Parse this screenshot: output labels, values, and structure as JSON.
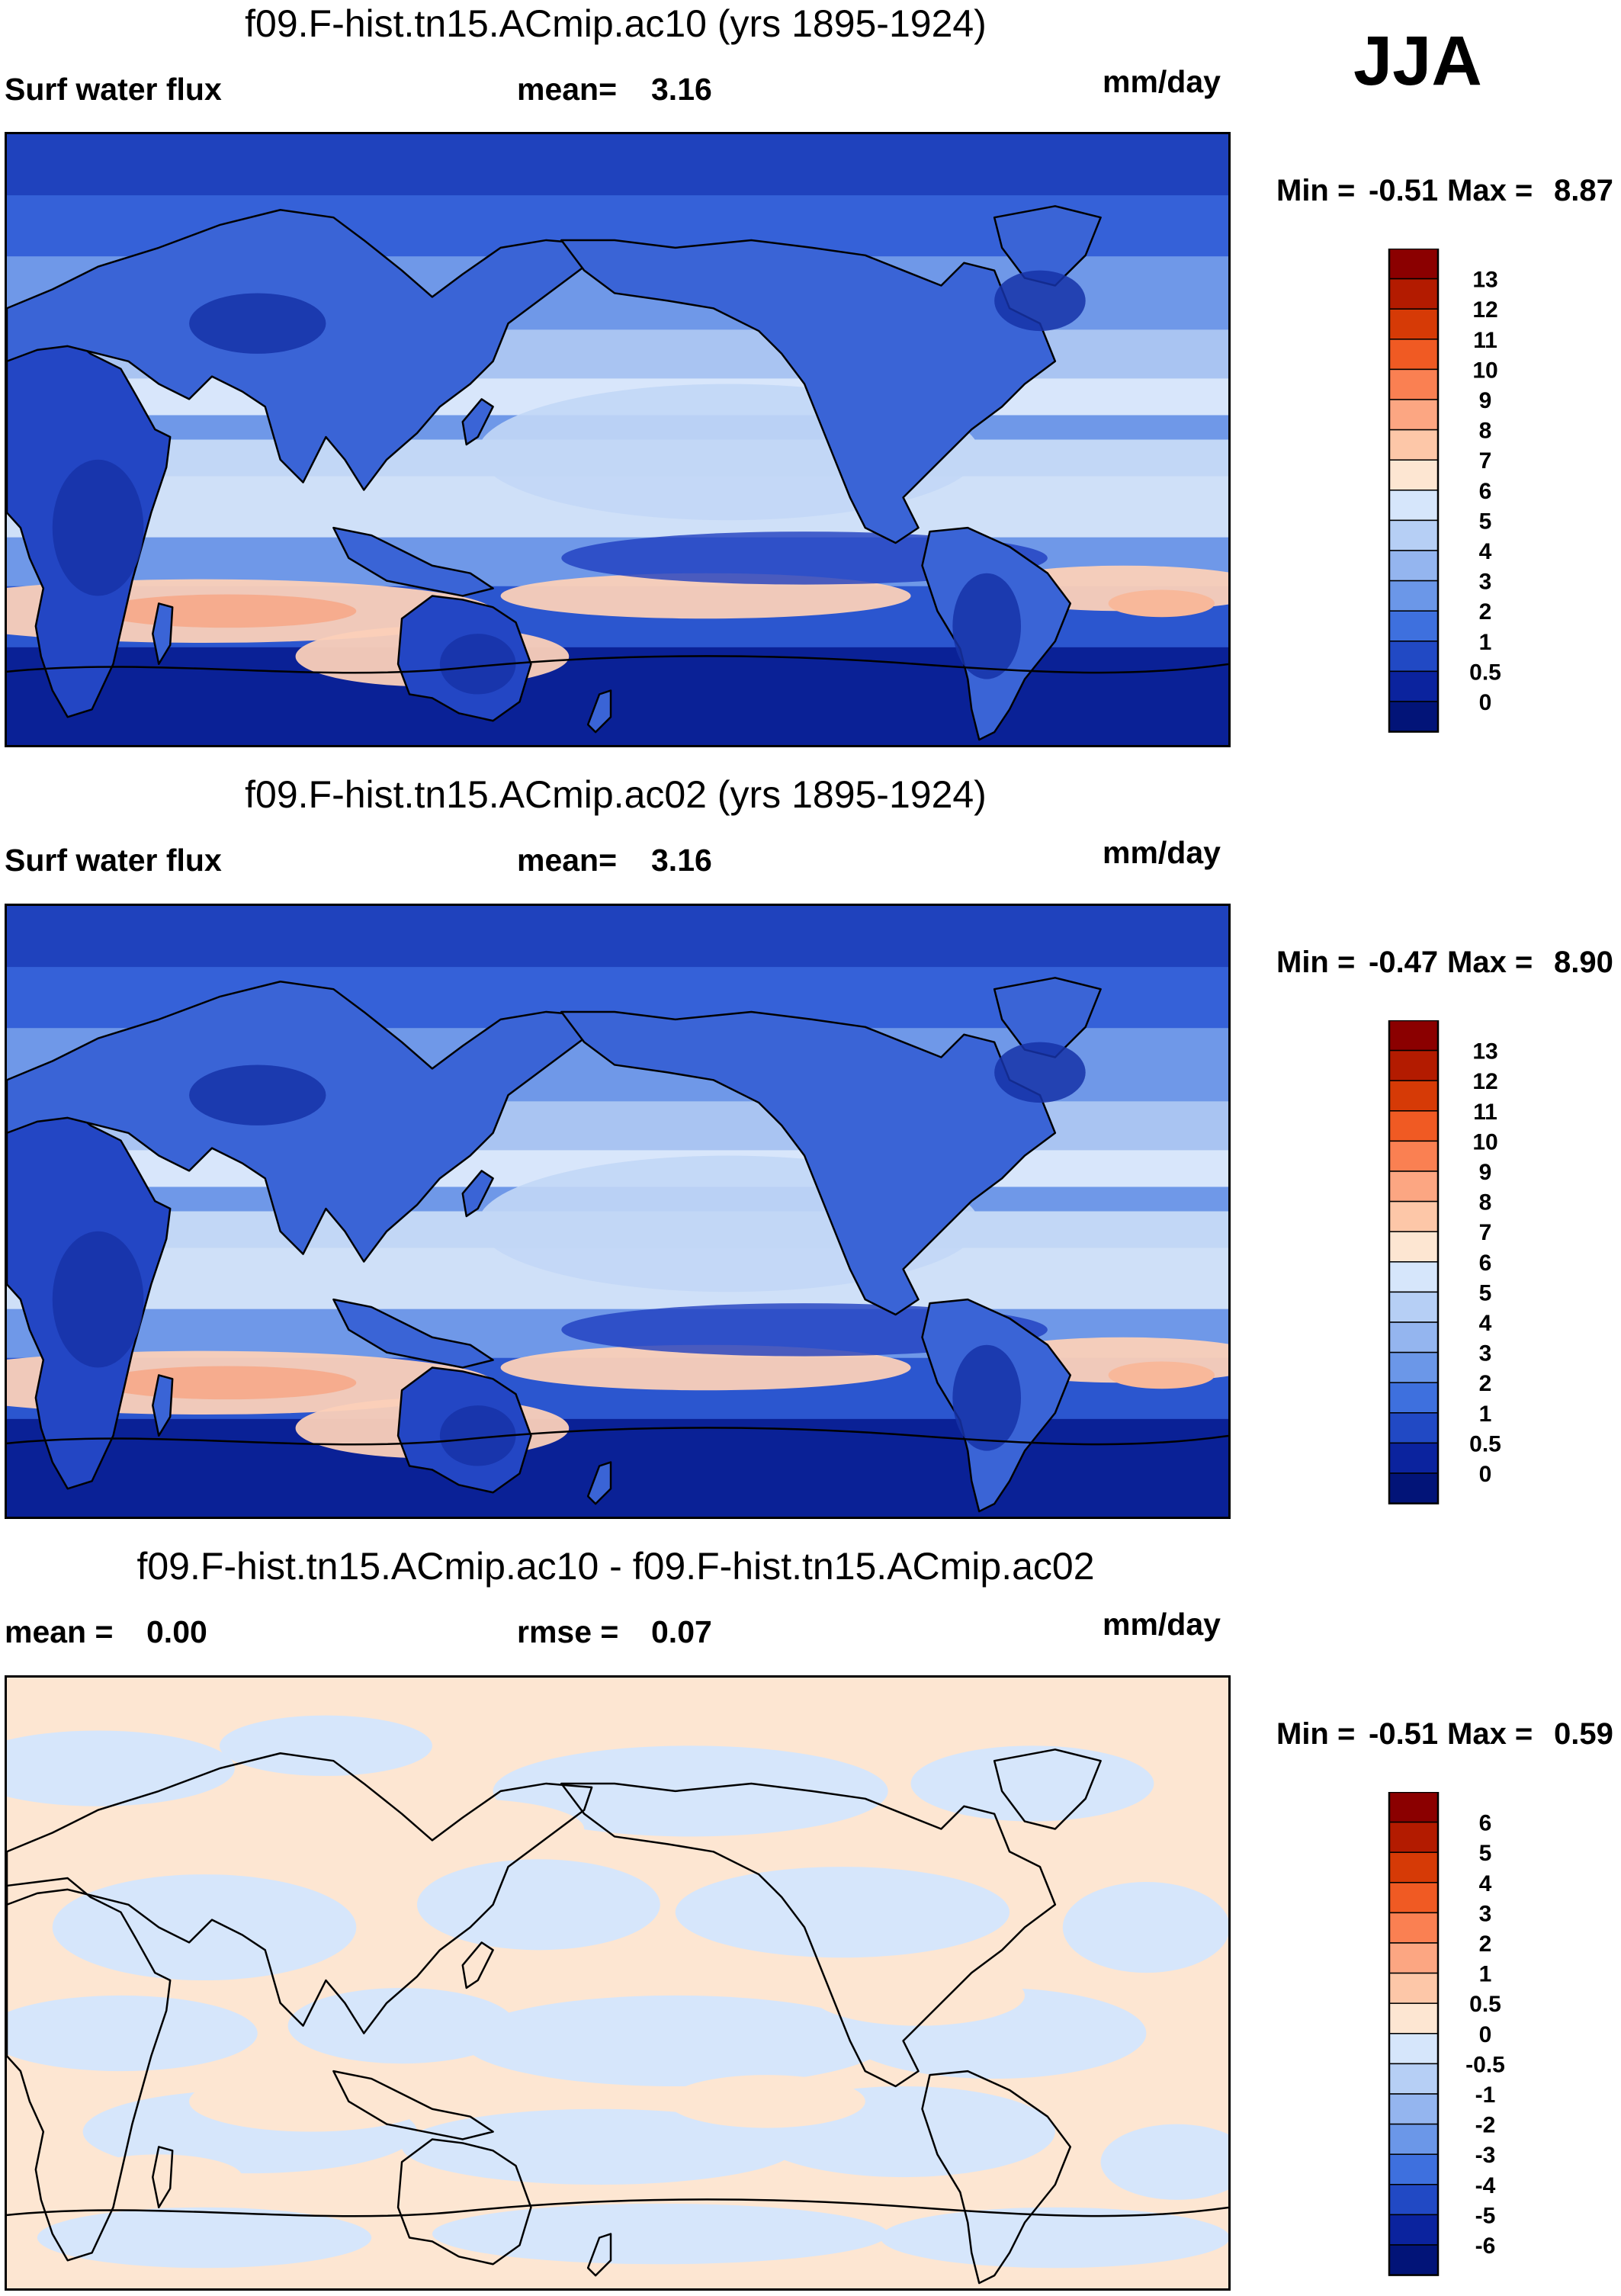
{
  "season": "JJA",
  "panels": [
    {
      "id": "ac10",
      "title": "f09.F-hist.tn15.ACmip.ac10 (yrs 1895-1924)",
      "left_label": "Surf water flux",
      "mid_key": "mean=",
      "mid_value": "3.16",
      "units": "mm/day",
      "min_label": "Min =",
      "min_value": "-0.51",
      "max_label": "Max =",
      "max_value": "8.87",
      "map_style": "precip"
    },
    {
      "id": "ac02",
      "title": "f09.F-hist.tn15.ACmip.ac02 (yrs 1895-1924)",
      "left_label": "Surf water flux",
      "mid_key": "mean=",
      "mid_value": "3.16",
      "units": "mm/day",
      "min_label": "Min =",
      "min_value": "-0.47",
      "max_label": "Max =",
      "max_value": "8.90",
      "map_style": "precip"
    },
    {
      "id": "diff",
      "title": "f09.F-hist.tn15.ACmip.ac10 - f09.F-hist.tn15.ACmip.ac02",
      "left_label": "mean =",
      "left_value": "0.00",
      "mid_key": "rmse =",
      "mid_value": "0.07",
      "units": "mm/day",
      "min_label": "Min =",
      "min_value": "-0.51",
      "max_label": "Max =",
      "max_value": "0.59",
      "map_style": "diff"
    }
  ],
  "chart_data": [
    {
      "type": "heatmap",
      "title": "f09.F-hist.tn15.ACmip.ac10 (yrs 1895-1924)",
      "variable": "Surf water flux",
      "units": "mm/day",
      "season": "JJA",
      "mean": 3.16,
      "min": -0.51,
      "max": 8.87,
      "colorbar_levels": [
        "13",
        "12",
        "11",
        "10",
        "9",
        "8",
        "7",
        "6",
        "5",
        "4",
        "3",
        "2",
        "1",
        "0.5",
        "0"
      ],
      "colorbar_colors": [
        "#8b0000",
        "#b31b00",
        "#d63a06",
        "#f05a23",
        "#fa8052",
        "#fca682",
        "#fdc7a8",
        "#fde6d2",
        "#d6e6fb",
        "#b6cff5",
        "#94b5ef",
        "#6b97e8",
        "#3e70de",
        "#2149c4",
        "#0b239e",
        "#021478"
      ]
    },
    {
      "type": "heatmap",
      "title": "f09.F-hist.tn15.ACmip.ac02 (yrs 1895-1924)",
      "variable": "Surf water flux",
      "units": "mm/day",
      "season": "JJA",
      "mean": 3.16,
      "min": -0.47,
      "max": 8.9,
      "colorbar_levels": [
        "13",
        "12",
        "11",
        "10",
        "9",
        "8",
        "7",
        "6",
        "5",
        "4",
        "3",
        "2",
        "1",
        "0.5",
        "0"
      ],
      "colorbar_colors": [
        "#8b0000",
        "#b31b00",
        "#d63a06",
        "#f05a23",
        "#fa8052",
        "#fca682",
        "#fdc7a8",
        "#fde6d2",
        "#d6e6fb",
        "#b6cff5",
        "#94b5ef",
        "#6b97e8",
        "#3e70de",
        "#2149c4",
        "#0b239e",
        "#021478"
      ]
    },
    {
      "type": "heatmap",
      "title": "f09.F-hist.tn15.ACmip.ac10 - f09.F-hist.tn15.ACmip.ac02",
      "units": "mm/day",
      "season": "JJA",
      "mean": 0.0,
      "rmse": 0.07,
      "min": -0.51,
      "max": 0.59,
      "colorbar_levels": [
        "6",
        "5",
        "4",
        "3",
        "2",
        "1",
        "0.5",
        "0",
        "-0.5",
        "-1",
        "-2",
        "-3",
        "-4",
        "-5",
        "-6"
      ],
      "colorbar_colors": [
        "#8b0000",
        "#b31b00",
        "#d63a06",
        "#f05a23",
        "#fa8052",
        "#fca682",
        "#fdc7a8",
        "#fde6d2",
        "#d6e6fb",
        "#b6cff5",
        "#94b5ef",
        "#6b97e8",
        "#3e70de",
        "#2149c4",
        "#0b239e",
        "#021478"
      ]
    }
  ]
}
